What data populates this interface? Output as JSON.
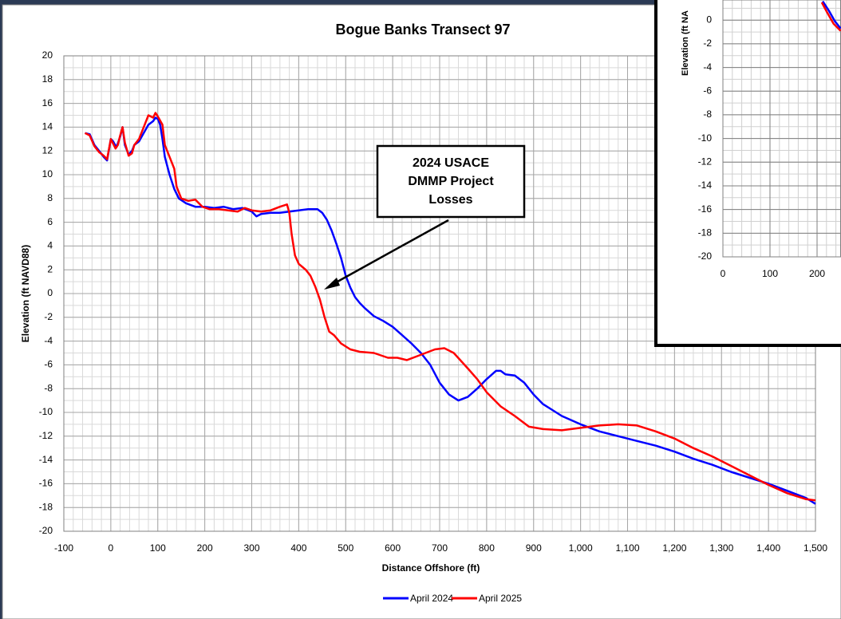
{
  "chart_data": [
    {
      "type": "line",
      "title": "Bogue Banks Transect 97",
      "x_label": "Distance Offshore (ft)",
      "y_label": "Elevation (ft NAVD88)",
      "xlim": [
        -100,
        1500
      ],
      "ylim": [
        -20,
        20
      ],
      "xticks": [
        -100,
        0,
        100,
        200,
        300,
        400,
        500,
        600,
        700,
        800,
        900,
        {
          "value": 1000,
          "label": "1,000"
        },
        {
          "value": 1100,
          "label": "1,100"
        },
        {
          "value": 1200,
          "label": "1,200"
        },
        {
          "value": 1300,
          "label": "1,300"
        },
        {
          "value": 1400,
          "label": "1,400"
        },
        {
          "value": 1500,
          "label": "1,500"
        }
      ],
      "yticks": [
        -20,
        -18,
        -16,
        -14,
        -12,
        -10,
        -8,
        -6,
        -4,
        -2,
        0,
        2,
        4,
        6,
        8,
        10,
        12,
        14,
        16,
        18,
        20
      ],
      "grid": true,
      "minor_grid": true,
      "legend": "bottom",
      "annotation": {
        "lines": [
          "2024 USACE",
          "DMMP Project",
          "Losses"
        ]
      },
      "series": [
        {
          "name": "April 2024",
          "color": "#0000ff",
          "x": [
            -55,
            -45,
            -35,
            -25,
            -15,
            -8,
            0,
            5,
            12,
            20,
            25,
            30,
            38,
            45,
            50,
            60,
            70,
            80,
            90,
            95,
            100,
            105,
            110,
            115,
            125,
            135,
            145,
            160,
            180,
            200,
            220,
            240,
            260,
            280,
            300,
            310,
            320,
            340,
            360,
            380,
            400,
            420,
            440,
            450,
            460,
            470,
            480,
            490,
            500,
            510,
            520,
            530,
            540,
            560,
            580,
            600,
            620,
            640,
            660,
            680,
            700,
            720,
            740,
            760,
            780,
            800,
            820,
            830,
            840,
            860,
            880,
            900,
            920,
            940,
            960,
            1000,
            1040,
            1080,
            1120,
            1160,
            1200,
            1240,
            1280,
            1320,
            1360,
            1400,
            1440,
            1480,
            1500
          ],
          "values": [
            13.5,
            13.4,
            12.5,
            12,
            11.5,
            11.2,
            13,
            12.8,
            12.3,
            13.2,
            14,
            12.5,
            11.7,
            12,
            12.5,
            12.8,
            13.5,
            14.2,
            14.5,
            14.8,
            14.7,
            14.2,
            13,
            11.5,
            10,
            8.8,
            8,
            7.6,
            7.3,
            7.3,
            7.2,
            7.3,
            7.1,
            7.2,
            6.9,
            6.5,
            6.7,
            6.8,
            6.8,
            6.9,
            7,
            7.1,
            7.1,
            6.8,
            6.2,
            5.3,
            4.2,
            3,
            1.5,
            0.5,
            -0.3,
            -0.8,
            -1.2,
            -1.9,
            -2.3,
            -2.8,
            -3.5,
            -4.2,
            -5,
            -6,
            -7.5,
            -8.5,
            -9,
            -8.7,
            -8,
            -7.2,
            -6.5,
            -6.5,
            -6.8,
            -6.9,
            -7.5,
            -8.5,
            -9.3,
            -9.8,
            -10.3,
            -11,
            -11.6,
            -12,
            -12.4,
            -12.8,
            -13.3,
            -13.9,
            -14.4,
            -15,
            -15.5,
            -16,
            -16.6,
            -17.2,
            -17.7
          ]
        },
        {
          "name": "April 2025",
          "color": "#ff0000",
          "x": [
            -55,
            -45,
            -35,
            -25,
            -15,
            -8,
            0,
            10,
            15,
            20,
            25,
            30,
            38,
            45,
            50,
            60,
            70,
            80,
            90,
            95,
            100,
            110,
            115,
            125,
            135,
            140,
            150,
            165,
            180,
            195,
            210,
            230,
            250,
            270,
            285,
            300,
            320,
            340,
            360,
            375,
            380,
            385,
            392,
            400,
            415,
            425,
            435,
            445,
            455,
            465,
            475,
            490,
            510,
            530,
            560,
            590,
            610,
            630,
            650,
            670,
            690,
            710,
            730,
            760,
            780,
            800,
            830,
            860,
            890,
            920,
            960,
            1000,
            1040,
            1080,
            1120,
            1160,
            1200,
            1240,
            1280,
            1320,
            1360,
            1400,
            1440,
            1480,
            1500
          ],
          "values": [
            13.5,
            13.3,
            12.4,
            11.9,
            11.6,
            11.3,
            13,
            12.2,
            12.5,
            13.3,
            14,
            12.7,
            11.6,
            11.8,
            12.5,
            13,
            14,
            15,
            14.8,
            15.2,
            14.9,
            14.2,
            12.5,
            11.5,
            10.5,
            9,
            8,
            7.8,
            7.9,
            7.3,
            7.1,
            7.1,
            7,
            6.9,
            7.2,
            7,
            6.9,
            7,
            7.3,
            7.5,
            6.8,
            5,
            3.2,
            2.5,
            2,
            1.5,
            0.6,
            -0.5,
            -2,
            -3.2,
            -3.5,
            -4.2,
            -4.7,
            -4.9,
            -5,
            -5.4,
            -5.4,
            -5.6,
            -5.3,
            -5,
            -4.7,
            -4.6,
            -5,
            -6.3,
            -7.2,
            -8.3,
            -9.5,
            -10.3,
            -11.2,
            -11.4,
            -11.5,
            -11.3,
            -11.1,
            -11,
            -11.1,
            -11.6,
            -12.2,
            -13,
            -13.7,
            -14.5,
            -15.3,
            -16.1,
            -16.8,
            -17.3,
            -17.4
          ]
        }
      ]
    },
    {
      "type": "line",
      "y_label": "Elevation (ft NA",
      "xlim": [
        0,
        250
      ],
      "ylim": [
        -20,
        1.7
      ],
      "xticks": [
        0,
        100,
        200
      ],
      "yticks": [
        -20,
        -18,
        -16,
        -14,
        -12,
        -10,
        -8,
        -6,
        -4,
        -2,
        0
      ],
      "grid": true,
      "minor_grid": true,
      "series": [
        {
          "color": "#0000ff",
          "x": [
            212,
            225,
            238,
            250
          ],
          "values": [
            1.6,
            0.8,
            -0.1,
            -0.7
          ]
        },
        {
          "color": "#ff0000",
          "x": [
            210,
            222,
            235,
            250
          ],
          "values": [
            1.5,
            0.6,
            -0.3,
            -0.9
          ]
        }
      ]
    }
  ]
}
